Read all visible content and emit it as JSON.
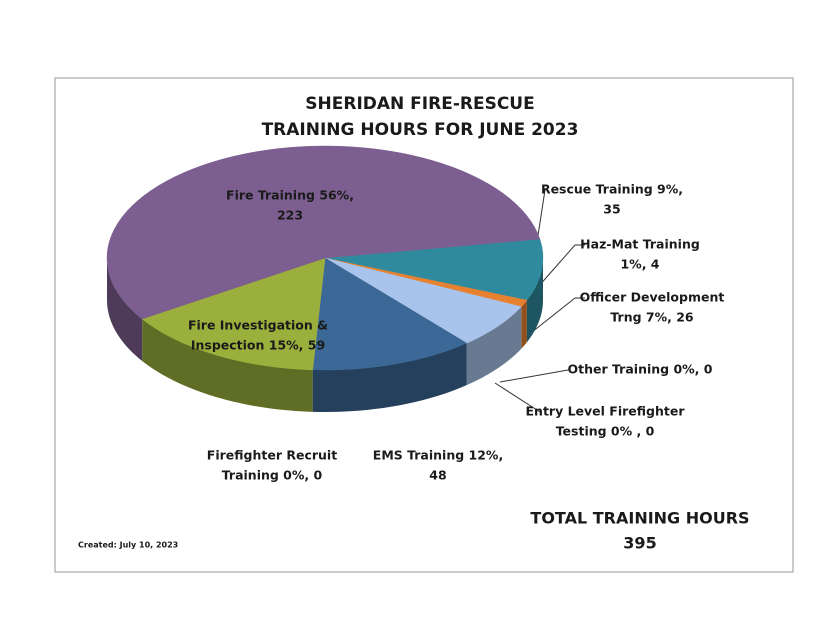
{
  "chart_data": {
    "type": "pie3d",
    "title": [
      "SHERIDAN FIRE-RESCUE",
      "TRAINING HOURS FOR JUNE 2023"
    ],
    "labels": [
      [
        "Rescue Training  9%,",
        "35"
      ],
      [
        "Haz-Mat Training",
        "1%, 4"
      ],
      [
        "Officer Development",
        "Trng  7%, 26"
      ],
      [
        "Other Training  0%, 0"
      ],
      [
        "Entry Level Firefighter",
        "Testing  0% , 0"
      ],
      [
        "EMS Training  12%,",
        "48"
      ],
      [
        "Firefighter Recruit",
        "Training  0%, 0"
      ],
      [
        "Fire Investigation &",
        "Inspection 15%, 59"
      ],
      [
        "Fire Training  56%,",
        "223"
      ]
    ],
    "values": [
      35,
      4,
      26,
      0,
      0,
      48,
      0,
      59,
      223
    ],
    "colors": [
      "#2f8a9e",
      "#e8812f",
      "#a8c4ec",
      "#8a8a8a",
      "#8a8a8a",
      "#3b6896",
      "#8a8a8a",
      "#9bb03c",
      "#7c5f90"
    ],
    "created": "Created:  July 10, 2023",
    "total_label": "TOTAL TRAINING  HOURS",
    "total": 395
  }
}
